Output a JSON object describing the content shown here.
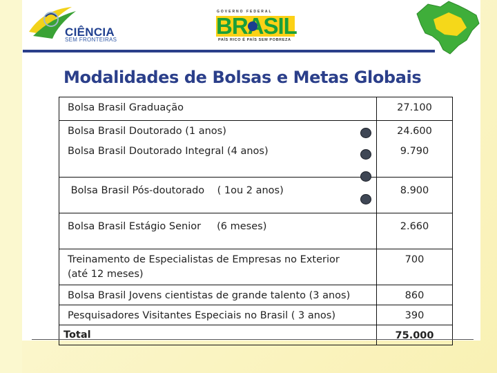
{
  "header": {
    "ciencia_title": "CIÊNCIA",
    "ciencia_subtitle": "SEM FRONTEIRAS",
    "gov_label": "GOVERNO FEDERAL",
    "brasil_label": "BRASIL",
    "brasil_slogan": "PAÍS RICO É PAÍS SEM POBREZA"
  },
  "title": "Modalidades de Bolsas e Metas Globais",
  "rows": [
    {
      "label_lines": [
        "Bolsa Brasil Graduação"
      ],
      "value": "27.100"
    },
    {
      "label_lines": [
        "Bolsa Brasil Doutorado (1 anos)",
        "Bolsa Brasil Doutorado Integral (4 anos)"
      ],
      "values": [
        "24.600",
        "9.790"
      ]
    },
    {
      "label_lines": [
        " Bolsa Brasil Pós-doutorado    ( 1ou 2 anos)"
      ],
      "value": "8.900"
    },
    {
      "label_lines": [
        "Bolsa Brasil Estágio Senior     (6 meses)"
      ],
      "value": "2.660"
    },
    {
      "label_lines": [
        "Treinamento de Especialistas de Empresas no Exterior",
        "(até 12 meses)"
      ],
      "value": "700"
    },
    {
      "label_lines": [
        "Bolsa Brasil Jovens cientistas de grande talento (3 anos)"
      ],
      "value": "860"
    },
    {
      "label_lines": [
        "Pesquisadores Visitantes Especiais no Brasil ( 3 anos)"
      ],
      "value": "390"
    }
  ],
  "total": {
    "label": "Total",
    "value": "75.000"
  },
  "colors": {
    "title": "#2b3f8a",
    "flag_green": "#1a9f3a",
    "flag_yellow": "#fcd116"
  }
}
